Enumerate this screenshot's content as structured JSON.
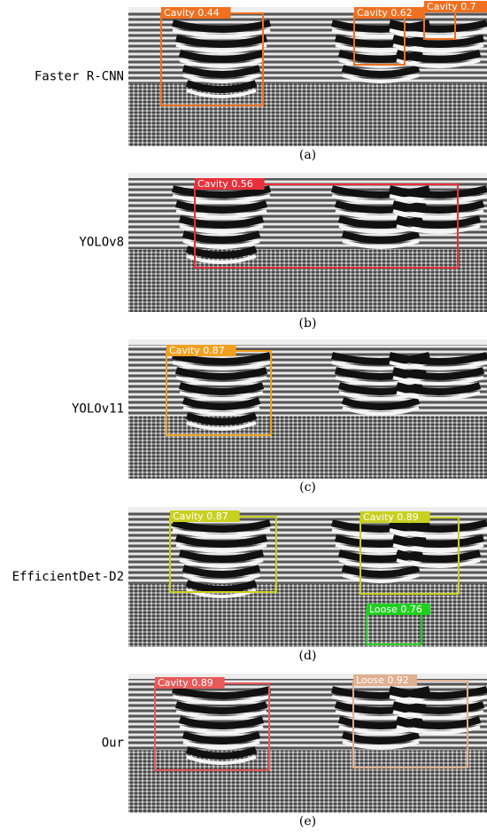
{
  "panels": [
    {
      "method": "Faster R-CNN",
      "caption": "(a)",
      "detections": [
        {
          "label": "Cavity 0.44",
          "color": "#f07020"
        },
        {
          "label": "Cavity 0.62",
          "color": "#f07020"
        },
        {
          "label": "Cavity 0.7",
          "color": "#f07020"
        }
      ]
    },
    {
      "method": "YOLOv8",
      "caption": "(b)",
      "detections": [
        {
          "label": "Cavity 0.56",
          "color": "#e8303a"
        }
      ]
    },
    {
      "method": "YOLOv11",
      "caption": "(c)",
      "detections": [
        {
          "label": "Cavity 0.87",
          "color": "#f0a020"
        }
      ]
    },
    {
      "method": "EfficientDet-D2",
      "caption": "(d)",
      "detections": [
        {
          "label": "Cavity 0.87",
          "color": "#c8d020"
        },
        {
          "label": "Cavity 0.89",
          "color": "#c8d020"
        },
        {
          "label": "Loose 0.76",
          "color": "#20d020"
        }
      ]
    },
    {
      "method": "Our",
      "caption": "(e)",
      "detections": [
        {
          "label": "Cavity 0.89",
          "color": "#e85a5a"
        },
        {
          "label": "Loose 0.92",
          "color": "#e0b090"
        }
      ]
    }
  ]
}
